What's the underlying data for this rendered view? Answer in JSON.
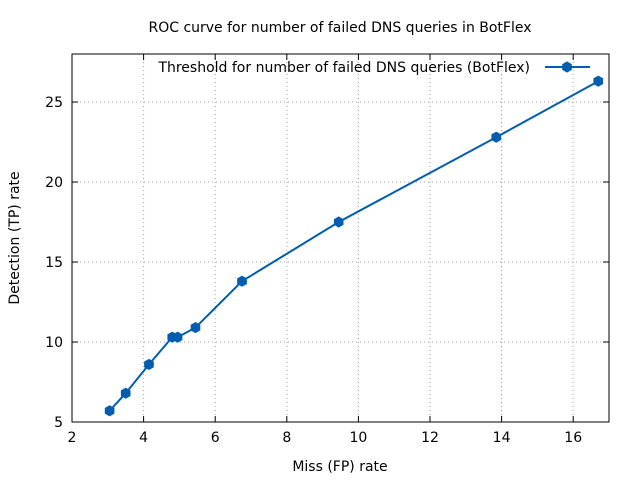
{
  "chart_data": {
    "type": "line",
    "title": "ROC curve for number of failed DNS queries in BotFlex",
    "xlabel": "Miss (FP) rate",
    "ylabel": "Detection (TP) rate",
    "xlim": [
      2,
      17
    ],
    "ylim": [
      5,
      28
    ],
    "xticks": [
      2,
      4,
      6,
      8,
      10,
      12,
      14,
      16
    ],
    "yticks": [
      5,
      10,
      15,
      20,
      25
    ],
    "grid": true,
    "legend_position": "top-right",
    "series": [
      {
        "name": "Threshold for number of failed DNS queries (BotFlex)",
        "color": "#005db0",
        "marker": "hexagon",
        "x": [
          3.05,
          3.5,
          4.15,
          4.8,
          4.95,
          5.45,
          6.75,
          9.45,
          13.85,
          16.7
        ],
        "y": [
          5.7,
          6.8,
          8.6,
          10.3,
          10.3,
          10.9,
          13.8,
          17.5,
          22.8,
          26.3
        ]
      }
    ]
  }
}
